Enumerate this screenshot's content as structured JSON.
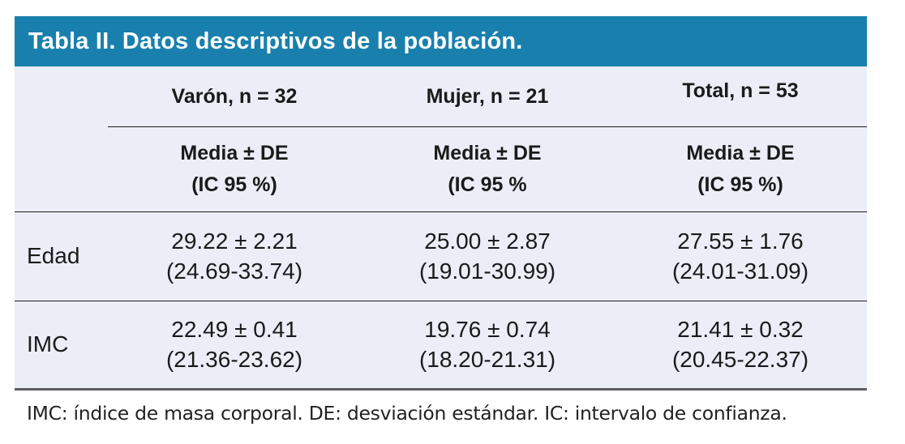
{
  "title": "Tabla II. Datos descriptivos de la población.",
  "colors": {
    "title_bg": "#1980ad",
    "title_text": "#ffffff",
    "body_bg": "#ebeef6",
    "text": "#1a1a1a",
    "rule": "#1b1b1b",
    "bottom_rule": "#5f5f5f"
  },
  "table": {
    "group_headers": [
      {
        "label": "Varón, n = 32"
      },
      {
        "label": "Mujer, n = 21"
      },
      {
        "label": "Total, n = 53"
      }
    ],
    "sub_headers": [
      {
        "line1": "Media ± DE",
        "line2": "(IC 95 %)"
      },
      {
        "line1": "Media ± DE",
        "line2": "(IC 95 %"
      },
      {
        "line1": "Media ± DE",
        "line2": "(IC 95 %)"
      }
    ],
    "rows": [
      {
        "label": "Edad",
        "cells": [
          {
            "mean": "29.22 ± 2.21",
            "ci": "(24.69-33.74)"
          },
          {
            "mean": "25.00 ± 2.87",
            "ci": "(19.01-30.99)"
          },
          {
            "mean": "27.55 ± 1.76",
            "ci": "(24.01-31.09)"
          }
        ]
      },
      {
        "label": "IMC",
        "cells": [
          {
            "mean": "22.49 ± 0.41",
            "ci": "(21.36-23.62)"
          },
          {
            "mean": "19.76 ± 0.74",
            "ci": "(18.20-21.31)"
          },
          {
            "mean": "21.41 ± 0.32",
            "ci": "(20.45-22.37)"
          }
        ]
      }
    ]
  },
  "footnote": "IMC: índice de masa corporal. DE: desviación estándar. IC: intervalo de confianza."
}
